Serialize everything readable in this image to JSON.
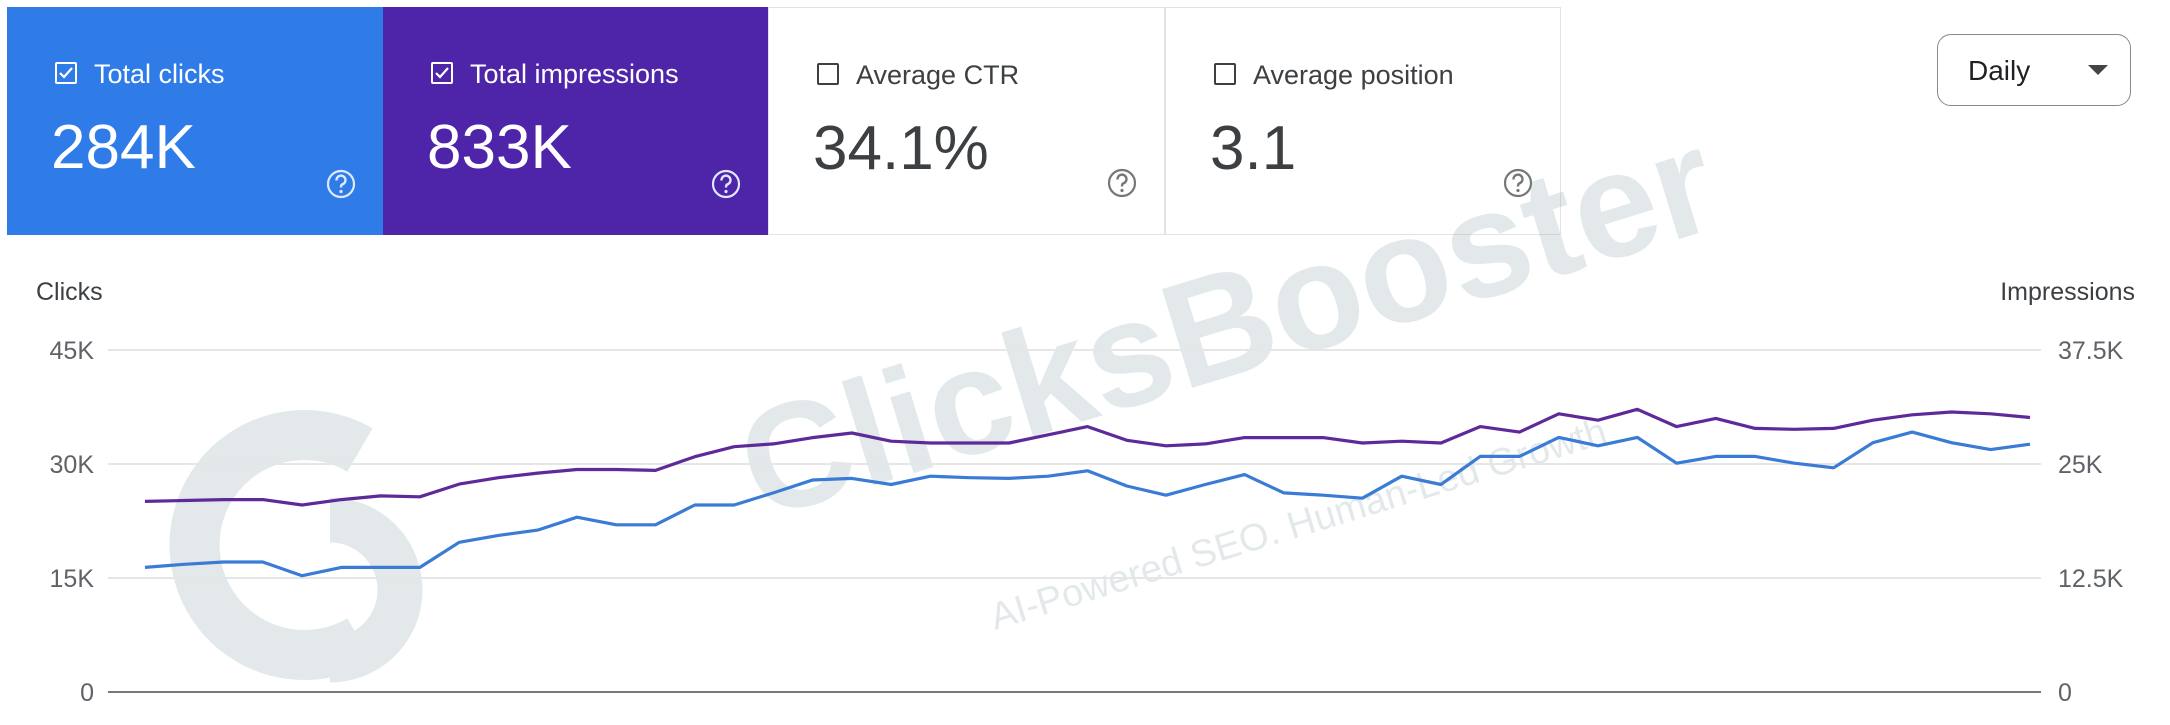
{
  "cards": [
    {
      "label": "Total clicks",
      "value": "284K",
      "checked": true,
      "color": "#2f7ce8"
    },
    {
      "label": "Total impressions",
      "value": "833K",
      "checked": true,
      "color": "#4e24a8"
    },
    {
      "label": "Average CTR",
      "value": "34.1%",
      "checked": false
    },
    {
      "label": "Average position",
      "value": "3.1",
      "checked": false
    }
  ],
  "controls": {
    "granularity": "Daily"
  },
  "watermark": {
    "brand": "ClicksBooster",
    "tagline": "AI-Powered SEO. Human-Led Growth"
  },
  "chart_data": {
    "type": "line",
    "ylabel": "Clicks",
    "y2label": "Impressions",
    "ylim": [
      0,
      45000
    ],
    "yticks": [
      {
        "value": 0,
        "label": "0"
      },
      {
        "value": 15000,
        "label": "15K"
      },
      {
        "value": 30000,
        "label": "30K"
      },
      {
        "value": 45000,
        "label": "45K"
      }
    ],
    "y2lim": [
      0,
      37500
    ],
    "y2ticks": [
      {
        "value": 0,
        "label": "0"
      },
      {
        "value": 12500,
        "label": "12.5K"
      },
      {
        "value": 25000,
        "label": "25K"
      },
      {
        "value": 37500,
        "label": "37.5K"
      }
    ],
    "grid": true,
    "series": [
      {
        "color": "#3a7bd5",
        "values": [
          16400,
          16800,
          17100,
          17100,
          15300,
          16400,
          16400,
          16400,
          19700,
          20600,
          21300,
          23000,
          22000,
          22000,
          24600,
          24600,
          26200,
          27900,
          28100,
          27300,
          28400,
          28200,
          28100,
          28400,
          29100,
          27100,
          25900,
          27300,
          28600,
          26200,
          25900,
          25500,
          28400,
          27300,
          31000,
          31000,
          33500,
          32400,
          33500,
          30100,
          31000,
          31000,
          30100,
          29500,
          32800,
          34200,
          32800,
          31900,
          32600
        ]
      },
      {
        "color": "#5e2a9a",
        "axis": "y2",
        "values": [
          20900,
          21000,
          21100,
          21100,
          20500,
          21100,
          21500,
          21400,
          22800,
          23500,
          24000,
          24400,
          24400,
          24300,
          25800,
          26900,
          27200,
          27900,
          28400,
          27500,
          27300,
          27300,
          27300,
          28200,
          29100,
          27600,
          27000,
          27200,
          27900,
          27900,
          27900,
          27300,
          27500,
          27300,
          29100,
          28500,
          30500,
          29800,
          31000,
          29100,
          30000,
          28900,
          28800,
          28900,
          29800,
          30400,
          30700,
          30500,
          30100
        ]
      }
    ]
  }
}
